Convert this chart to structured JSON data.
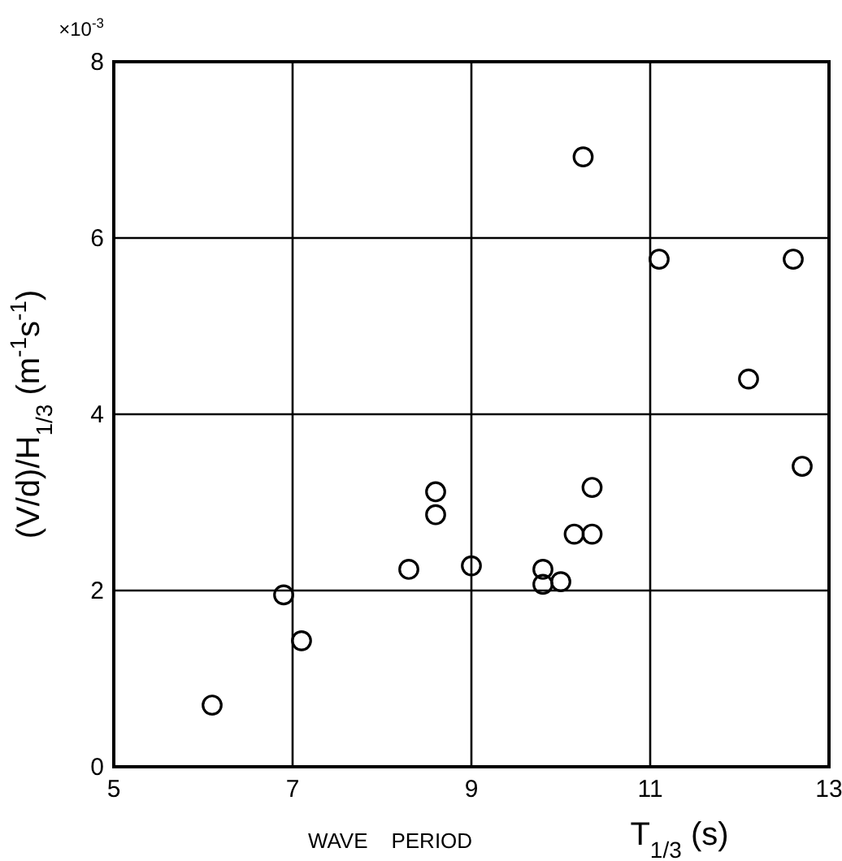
{
  "chart_data": {
    "type": "scatter",
    "xlabel": "T$_{1/3}$ (s)",
    "ylabel": "(V/d)/H$_{1/3}$   (m$^{-1}$s$^{-1}$)",
    "annotations": [
      "×10$^{-3}$",
      "WAVE    PERIOD"
    ],
    "x": [
      6.1,
      6.9,
      7.1,
      8.3,
      8.6,
      8.6,
      9.0,
      9.8,
      9.8,
      10.0,
      10.15,
      10.35,
      10.35,
      12.7,
      10.25,
      11.1,
      12.6,
      12.1
    ],
    "series": [
      {
        "color": "#000000",
        "values": [
          0.7,
          1.95,
          1.43,
          2.24,
          3.12,
          2.86,
          2.28,
          2.24,
          2.07,
          2.1,
          2.64,
          2.64,
          3.17,
          3.41,
          6.92,
          5.76,
          5.76,
          4.4
        ]
      }
    ],
    "xlim": [
      5,
      13
    ],
    "xticks": [
      5,
      7,
      9,
      11,
      13
    ],
    "ylim": [
      0,
      8
    ],
    "yticks": [
      0,
      2,
      4,
      6,
      8
    ],
    "grid": true,
    "marker": "circle"
  }
}
